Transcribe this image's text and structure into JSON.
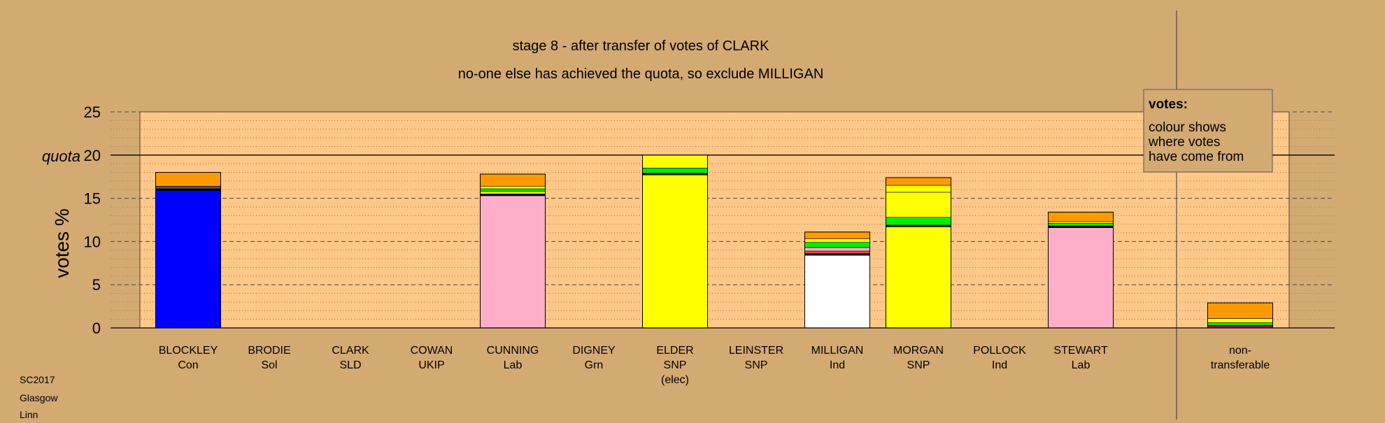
{
  "chart_data": {
    "type": "bar",
    "stacked": true,
    "title": "stage 8 - after transfer of votes of CLARK",
    "subtitle": "no-one else has achieved the quota, so exclude MILLIGAN",
    "ylabel": "votes %",
    "quota_label": "quota",
    "quota": 20,
    "ylim": [
      0,
      25
    ],
    "yticks": [
      0,
      5,
      10,
      15,
      20,
      25
    ],
    "grid": true,
    "legend": {
      "title": "votes:",
      "lines": [
        "colour shows",
        "where votes",
        "have come from"
      ],
      "placement": "top-right"
    },
    "candidates": [
      {
        "name": "BLOCKLEY",
        "party": "Con",
        "note": "",
        "segments": [
          {
            "value": 15.9,
            "color": "#0000ff"
          },
          {
            "value": 0.2,
            "color": "#000000"
          },
          {
            "value": 0.3,
            "color": "#555555"
          },
          {
            "value": 1.6,
            "color": "#ff9900"
          }
        ]
      },
      {
        "name": "BRODIE",
        "party": "Sol",
        "note": "",
        "segments": []
      },
      {
        "name": "CLARK",
        "party": "SLD",
        "note": "",
        "segments": []
      },
      {
        "name": "COWAN",
        "party": "UKIP",
        "note": "",
        "segments": []
      },
      {
        "name": "CUNNING",
        "party": "Lab",
        "note": "",
        "segments": [
          {
            "value": 15.3,
            "color": "#ffaec9"
          },
          {
            "value": 0.2,
            "color": "#000000"
          },
          {
            "value": 0.3,
            "color": "#ffff00"
          },
          {
            "value": 0.3,
            "color": "#00ee00"
          },
          {
            "value": 0.3,
            "color": "#ffff00"
          },
          {
            "value": 1.4,
            "color": "#ff9900"
          }
        ]
      },
      {
        "name": "DIGNEY",
        "party": "Grn",
        "note": "",
        "segments": []
      },
      {
        "name": "ELDER",
        "party": "SNP",
        "note": "(elec)",
        "segments": [
          {
            "value": 17.7,
            "color": "#ffff00"
          },
          {
            "value": 0.2,
            "color": "#000000"
          },
          {
            "value": 0.6,
            "color": "#00ee00"
          },
          {
            "value": 1.5,
            "color": "#ffff00"
          }
        ]
      },
      {
        "name": "LEINSTER",
        "party": "SNP",
        "note": "",
        "segments": []
      },
      {
        "name": "MILLIGAN",
        "party": "Ind",
        "note": "",
        "segments": [
          {
            "value": 8.4,
            "color": "#ffffff"
          },
          {
            "value": 0.2,
            "color": "#000000"
          },
          {
            "value": 0.3,
            "color": "#ff4444"
          },
          {
            "value": 0.4,
            "color": "#ffaec9"
          },
          {
            "value": 0.6,
            "color": "#00ee00"
          },
          {
            "value": 0.4,
            "color": "#ffff00"
          },
          {
            "value": 0.8,
            "color": "#ff9900"
          }
        ]
      },
      {
        "name": "MORGAN",
        "party": "SNP",
        "note": "",
        "segments": [
          {
            "value": 11.7,
            "color": "#ffff00"
          },
          {
            "value": 0.2,
            "color": "#000000"
          },
          {
            "value": 0.9,
            "color": "#00ee00"
          },
          {
            "value": 2.9,
            "color": "#ffff00"
          },
          {
            "value": 0.8,
            "color": "#ffff00"
          },
          {
            "value": 0.9,
            "color": "#ff9900"
          }
        ]
      },
      {
        "name": "POLLOCK",
        "party": "Ind",
        "note": "",
        "segments": []
      },
      {
        "name": "STEWART",
        "party": "Lab",
        "note": "",
        "segments": [
          {
            "value": 11.6,
            "color": "#ffaec9"
          },
          {
            "value": 0.2,
            "color": "#000000"
          },
          {
            "value": 0.3,
            "color": "#00ee00"
          },
          {
            "value": 0.2,
            "color": "#ffff00"
          },
          {
            "value": 1.1,
            "color": "#ff9900"
          }
        ]
      }
    ],
    "nontransferable": {
      "label_lines": [
        "non-",
        "transferable"
      ],
      "segments": [
        {
          "value": 0.3,
          "color": "#aa0066"
        },
        {
          "value": 0.3,
          "color": "#00ee00"
        },
        {
          "value": 0.5,
          "color": "#ffff00"
        },
        {
          "value": 1.8,
          "color": "#ff9900"
        }
      ]
    }
  },
  "footer": {
    "lines": [
      "SC2017",
      "Glasgow",
      "Linn"
    ]
  }
}
